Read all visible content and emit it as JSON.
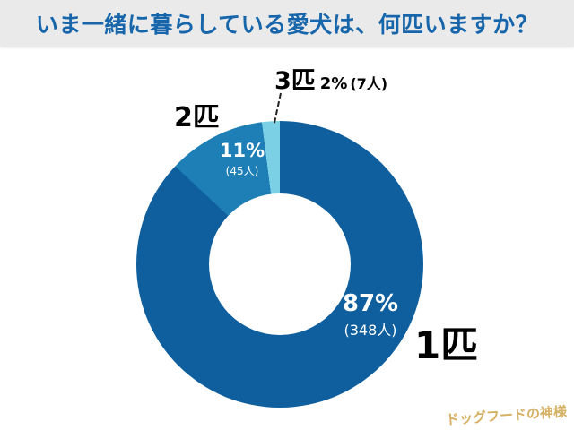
{
  "header": {
    "title": "いま一緒に暮らしている愛犬は、何匹いますか？"
  },
  "chart_data": {
    "type": "pie",
    "donut": true,
    "title": "いま一緒に暮らしている愛犬は、何匹いますか？",
    "categories": [
      "1匹",
      "2匹",
      "3匹"
    ],
    "values": [
      87,
      11,
      2
    ],
    "counts": [
      348,
      45,
      7
    ],
    "colors": [
      "#0f5f9e",
      "#1e7fb6",
      "#7bd0e5"
    ],
    "start_angle_deg": 0,
    "direction": "clockwise",
    "legend_position": "none",
    "labels": [
      {
        "category": "1匹",
        "percent_label": "87%",
        "count_label": "(348人)"
      },
      {
        "category": "2匹",
        "percent_label": "11%",
        "count_label": "(45人)"
      },
      {
        "category": "3匹",
        "percent_label": "2%",
        "count_label": "(7人)"
      }
    ]
  },
  "watermark": {
    "text": "ドッグフードの神様"
  }
}
